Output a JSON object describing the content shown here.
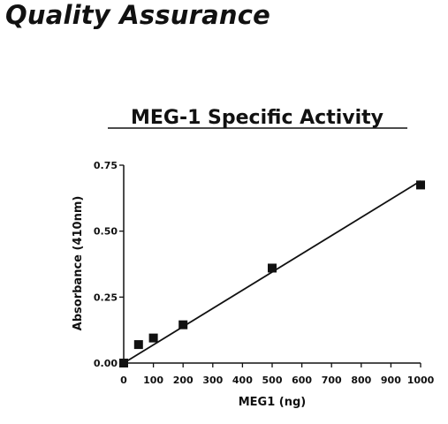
{
  "page": {
    "heading": "Quality Assurance"
  },
  "chart_data": {
    "type": "scatter",
    "title": "MEG-1 Specific Activity",
    "xlabel": "MEG1 (ng)",
    "ylabel": "Absorbance (410nm)",
    "xlim": [
      0,
      1000
    ],
    "ylim": [
      0,
      0.75
    ],
    "x_ticks": [
      "0",
      "100",
      "200",
      "300",
      "400",
      "500",
      "600",
      "700",
      "800",
      "900",
      "1000"
    ],
    "y_ticks": [
      "0.00",
      "0.25",
      "0.50",
      "0.75"
    ],
    "grid": false,
    "legend": "none",
    "marker": "square",
    "color": "#111111",
    "points": [
      {
        "x": 0,
        "y": 0.0
      },
      {
        "x": 50,
        "y": 0.07
      },
      {
        "x": 100,
        "y": 0.095
      },
      {
        "x": 200,
        "y": 0.145
      },
      {
        "x": 500,
        "y": 0.36
      },
      {
        "x": 1000,
        "y": 0.675
      }
    ],
    "fit_line": {
      "x": [
        0,
        1000
      ],
      "y": [
        0.0,
        0.69
      ]
    }
  }
}
